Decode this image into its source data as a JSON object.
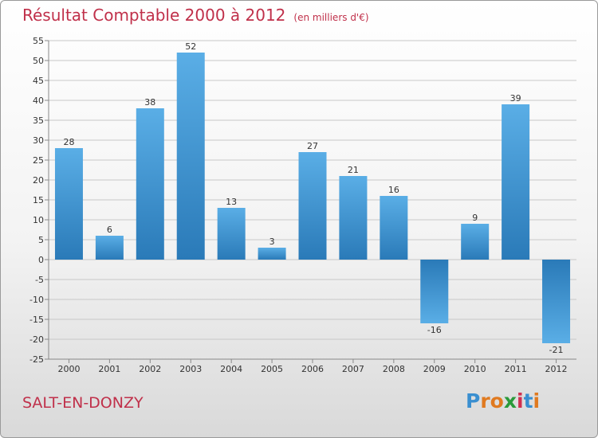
{
  "chart_data": {
    "type": "bar",
    "title": "Résultat Comptable 2000 à 2012",
    "subtitle": "(en milliers d'€)",
    "categories": [
      "2000",
      "2001",
      "2002",
      "2003",
      "2004",
      "2005",
      "2006",
      "2007",
      "2008",
      "2009",
      "2010",
      "2011",
      "2012"
    ],
    "values": [
      28,
      6,
      38,
      52,
      13,
      3,
      27,
      21,
      16,
      -16,
      9,
      39,
      -21
    ],
    "value_labels": [
      "28",
      "6",
      "38",
      "52",
      "13",
      "3",
      "27",
      "21",
      "16",
      "-16",
      "9",
      "39",
      "-21"
    ],
    "ylim": [
      -25,
      55
    ],
    "yticks": [
      -25,
      -20,
      -15,
      -10,
      -5,
      0,
      5,
      10,
      15,
      20,
      25,
      30,
      35,
      40,
      45,
      50,
      55
    ],
    "ytick_labels": [
      "-25",
      "-20",
      "-15",
      "-10",
      "-5",
      "0",
      "5",
      "10",
      "15",
      "20",
      "25",
      "30",
      "35",
      "40",
      "45",
      "50",
      "55"
    ],
    "xlabel": "",
    "ylabel": "",
    "grid": true,
    "colors": {
      "bar_light": "#5aaee6",
      "bar_dark": "#2a7ab8",
      "grid": "#c8c8c8",
      "axis": "#888888"
    }
  },
  "footer": {
    "place": "SALT-EN-DONZY",
    "logo_letters": [
      "P",
      "r",
      "o",
      "x",
      "i",
      "t",
      "i"
    ],
    "logo_colors": [
      "#3a8fd0",
      "#e07a20",
      "#e07a20",
      "#2a9a3a",
      "#d03050",
      "#3a8fd0",
      "#e07a20"
    ]
  }
}
